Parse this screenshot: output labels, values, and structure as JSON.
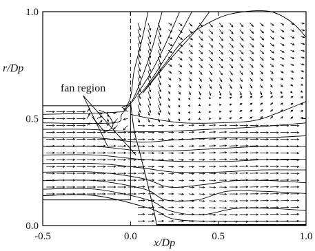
{
  "chart_data": {
    "type": "vector-field",
    "title": "",
    "xlabel": "x/Dp",
    "ylabel": "r/Dp",
    "xlim": [
      -0.5,
      1.0
    ],
    "ylim": [
      0.0,
      1.0
    ],
    "xticks": [
      {
        "value": -0.5,
        "label": "-0.5"
      },
      {
        "value": 0.0,
        "label": "0.0"
      },
      {
        "value": 0.5,
        "label": "0.5"
      },
      {
        "value": 1.0,
        "label": "1.0"
      }
    ],
    "yticks": [
      {
        "value": 0.0,
        "label": "0.0"
      },
      {
        "value": 0.5,
        "label": "0.5"
      },
      {
        "value": 1.0,
        "label": "1.0"
      }
    ],
    "grid": false,
    "annotations": [
      {
        "text": "fan region",
        "anchor": [
          -0.27,
          0.64
        ],
        "pointer_to": [
          [
            -0.13,
            0.37
          ],
          [
            0.03,
            0.33
          ]
        ]
      }
    ],
    "geometry": {
      "duct_box": {
        "x": [
          -0.5,
          0.0
        ],
        "r": [
          0.12,
          0.56
        ]
      },
      "centerline_dashed_x": 0.0,
      "rotor_blade": [
        [
          0.0,
          0.58
        ],
        [
          0.02,
          0.45
        ],
        [
          0.05,
          0.35
        ],
        [
          0.09,
          0.22
        ],
        [
          0.13,
          0.08
        ],
        [
          0.15,
          0.0
        ]
      ],
      "bottom_wall": {
        "x": [
          0.15,
          1.0
        ],
        "r": 0.0
      }
    },
    "streamlines": [
      {
        "name": "",
        "points": [
          [
            0.1,
            1.0
          ],
          [
            0.06,
            0.85
          ],
          [
            0.02,
            0.72
          ],
          [
            0.0,
            0.6
          ],
          [
            -0.05,
            0.52
          ],
          [
            -0.1,
            0.48
          ],
          [
            -0.5,
            0.48
          ]
        ]
      },
      {
        "name": "",
        "points": [
          [
            0.18,
            1.0
          ],
          [
            0.12,
            0.82
          ],
          [
            0.06,
            0.68
          ],
          [
            0.02,
            0.6
          ],
          [
            -0.02,
            0.55
          ],
          [
            -0.08,
            0.53
          ],
          [
            -0.5,
            0.52
          ]
        ]
      },
      {
        "name": "",
        "points": [
          [
            0.28,
            1.0
          ],
          [
            0.2,
            0.85
          ],
          [
            0.12,
            0.72
          ],
          [
            0.05,
            0.63
          ],
          [
            0.01,
            0.58
          ],
          [
            -0.05,
            0.55
          ]
        ]
      },
      {
        "name": "",
        "points": [
          [
            0.35,
            1.0
          ],
          [
            0.27,
            0.88
          ],
          [
            0.18,
            0.76
          ],
          [
            0.1,
            0.66
          ],
          [
            0.04,
            0.6
          ]
        ]
      },
      {
        "name": "",
        "points": [
          [
            0.45,
            1.0
          ],
          [
            0.36,
            0.9
          ],
          [
            0.25,
            0.8
          ],
          [
            0.15,
            0.7
          ],
          [
            0.07,
            0.62
          ]
        ]
      },
      {
        "name": "",
        "points": [
          [
            0.07,
            0.62
          ],
          [
            0.2,
            0.76
          ],
          [
            0.32,
            0.88
          ],
          [
            0.5,
            0.97
          ],
          [
            0.65,
            1.0
          ],
          [
            0.8,
            1.0
          ],
          [
            0.92,
            0.95
          ],
          [
            1.0,
            0.88
          ]
        ]
      },
      {
        "name": "",
        "points": [
          [
            0.0,
            0.52
          ],
          [
            0.12,
            0.5
          ],
          [
            0.3,
            0.48
          ],
          [
            0.5,
            0.48
          ],
          [
            0.7,
            0.49
          ],
          [
            0.85,
            0.53
          ],
          [
            1.0,
            0.58
          ]
        ]
      },
      {
        "name": "",
        "points": [
          [
            -0.5,
            0.45
          ],
          [
            -0.25,
            0.45
          ],
          [
            0.0,
            0.44
          ],
          [
            0.2,
            0.44
          ],
          [
            0.45,
            0.45
          ],
          [
            0.7,
            0.46
          ],
          [
            1.0,
            0.48
          ]
        ]
      },
      {
        "name": "",
        "points": [
          [
            -0.5,
            0.41
          ],
          [
            -0.2,
            0.41
          ],
          [
            0.05,
            0.39
          ],
          [
            0.25,
            0.4
          ],
          [
            0.5,
            0.41
          ],
          [
            0.75,
            0.41
          ],
          [
            1.0,
            0.42
          ]
        ]
      },
      {
        "name": "",
        "points": [
          [
            -0.5,
            0.37
          ],
          [
            -0.2,
            0.37
          ],
          [
            0.05,
            0.35
          ],
          [
            0.25,
            0.35
          ],
          [
            0.5,
            0.36
          ],
          [
            0.75,
            0.37
          ],
          [
            1.0,
            0.37
          ]
        ]
      },
      {
        "name": "",
        "points": [
          [
            -0.5,
            0.33
          ],
          [
            -0.2,
            0.33
          ],
          [
            0.05,
            0.31
          ],
          [
            0.3,
            0.3
          ],
          [
            0.55,
            0.3
          ],
          [
            0.8,
            0.31
          ],
          [
            1.0,
            0.31
          ]
        ]
      },
      {
        "name": "",
        "points": [
          [
            -0.5,
            0.29
          ],
          [
            -0.2,
            0.29
          ],
          [
            0.06,
            0.27
          ],
          [
            0.25,
            0.25
          ],
          [
            0.5,
            0.25
          ],
          [
            0.75,
            0.26
          ],
          [
            1.0,
            0.26
          ]
        ]
      },
      {
        "name": "",
        "points": [
          [
            -0.5,
            0.25
          ],
          [
            -0.2,
            0.25
          ],
          [
            0.07,
            0.22
          ],
          [
            0.22,
            0.18
          ],
          [
            0.4,
            0.19
          ],
          [
            0.6,
            0.21
          ],
          [
            0.8,
            0.21
          ],
          [
            1.0,
            0.2
          ]
        ]
      },
      {
        "name": "",
        "points": [
          [
            -0.5,
            0.21
          ],
          [
            -0.2,
            0.21
          ],
          [
            0.08,
            0.17
          ],
          [
            0.2,
            0.12
          ],
          [
            0.38,
            0.12
          ],
          [
            0.55,
            0.16
          ],
          [
            0.75,
            0.16
          ],
          [
            1.0,
            0.15
          ]
        ]
      },
      {
        "name": "",
        "points": [
          [
            -0.5,
            0.17
          ],
          [
            -0.2,
            0.17
          ],
          [
            0.1,
            0.12
          ],
          [
            0.22,
            0.07
          ],
          [
            0.4,
            0.05
          ],
          [
            0.6,
            0.08
          ],
          [
            0.8,
            0.08
          ],
          [
            1.0,
            0.07
          ]
        ]
      },
      {
        "name": "",
        "points": [
          [
            -0.5,
            0.14
          ],
          [
            -0.2,
            0.14
          ],
          [
            0.11,
            0.08
          ],
          [
            0.25,
            0.03
          ],
          [
            0.5,
            0.02
          ],
          [
            0.75,
            0.02
          ],
          [
            1.0,
            0.02
          ]
        ]
      },
      {
        "name": "",
        "points": [
          [
            -0.22,
            0.51
          ],
          [
            -0.18,
            0.47
          ],
          [
            -0.14,
            0.44
          ],
          [
            -0.1,
            0.47
          ],
          [
            -0.13,
            0.52
          ],
          [
            -0.18,
            0.54
          ]
        ]
      }
    ]
  }
}
